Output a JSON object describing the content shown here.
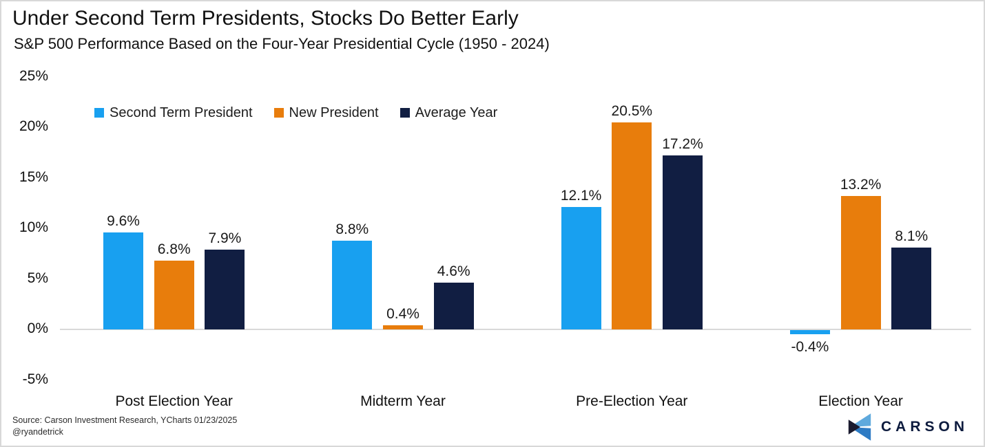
{
  "header": {
    "title": "Under Second Term Presidents, Stocks Do Better Early",
    "subtitle": "S&P 500 Performance Based on the Four-Year Presidential Cycle (1950 - 2024)"
  },
  "chart_data": {
    "type": "bar",
    "title": "Under Second Term Presidents, Stocks Do Better Early",
    "subtitle": "S&P 500 Performance Based on the Four-Year Presidential Cycle (1950 - 2024)",
    "categories": [
      "Post Election Year",
      "Midterm Year",
      "Pre-Election Year",
      "Election Year"
    ],
    "series": [
      {
        "name": "Second Term President",
        "color": "#18a0f0",
        "values": [
          9.6,
          8.8,
          12.1,
          -0.4
        ]
      },
      {
        "name": "New President",
        "color": "#e87d0c",
        "values": [
          6.8,
          0.4,
          20.5,
          13.2
        ]
      },
      {
        "name": "Average Year",
        "color": "#111e42",
        "values": [
          7.9,
          4.6,
          17.2,
          8.1
        ]
      }
    ],
    "xlabel": "",
    "ylabel": "",
    "ylim": [
      -5,
      25
    ],
    "ytick_labels": [
      "25%",
      "20%",
      "15%",
      "10%",
      "5%",
      "0%",
      "-5%"
    ],
    "gridlines": "zero-line-only",
    "legend_position": "top-left-inside",
    "value_labels": {
      "Second Term President": [
        "9.6%",
        "8.8%",
        "12.1%",
        "-0.4%"
      ],
      "New President": [
        "6.8%",
        "0.4%",
        "20.5%",
        "13.2%"
      ],
      "Average Year": [
        "7.9%",
        "4.6%",
        "17.2%",
        "8.1%"
      ]
    }
  },
  "footer": {
    "source_line1": "Source: Carson Investment Research, YCharts 01/23/2025",
    "source_line2": "@ryandetrick",
    "logo_text": "CARSON",
    "logo_colors": {
      "light_blue": "#5fa9dd",
      "mid_blue": "#2e7bc4",
      "dark": "#1b1b2f",
      "text": "#0d1b3e"
    }
  }
}
